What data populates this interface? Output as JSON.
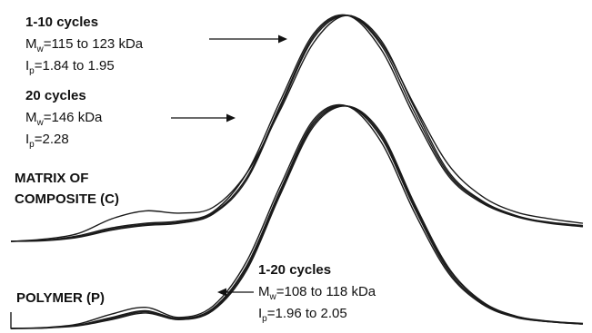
{
  "chart_data": {
    "type": "line",
    "panels": [
      {
        "label_lines": [
          "MATRIX OF",
          "COMPOSITE (C)"
        ],
        "annotations": [
          {
            "heading": "1-10 cycles",
            "mw_prefix": "M",
            "mw_sub": "w",
            "mw_text": "=115 to 123 kDa",
            "ip_prefix": "I",
            "ip_sub": "p",
            "ip_text": "=1.84 to 1.95"
          },
          {
            "heading": "20 cycles",
            "mw_prefix": "M",
            "mw_sub": "w",
            "mw_text": "=146 kDa",
            "ip_prefix": "I",
            "ip_sub": "p",
            "ip_text": "=2.28"
          }
        ],
        "series": [
          {
            "values": [
              0,
              1.0,
              3.5,
              10.0,
              13.5,
              12.5,
              15.0,
              30.0,
              58.0,
              88.0,
              100.0,
              88.0,
              60.0,
              34.0,
              20.0,
              13.0,
              10.0,
              8.0
            ]
          },
          {
            "values": [
              0,
              0.5,
              2.5,
              6.0,
              8.0,
              9.0,
              13.0,
              30.0,
              62.0,
              92.0,
              100.0,
              85.0,
              55.0,
              29.0,
              17.0,
              11.0,
              8.5,
              7.0
            ]
          },
          {
            "values": [
              0,
              0.5,
              2.0,
              5.5,
              7.5,
              8.5,
              12.5,
              28.0,
              60.0,
              91.0,
              100.0,
              87.0,
              57.0,
              30.0,
              17.5,
              11.0,
              8.0,
              6.5
            ]
          },
          {
            "values": [
              0,
              0.3,
              1.8,
              5.0,
              7.0,
              8.0,
              12.0,
              27.0,
              59.0,
              90.0,
              100.0,
              89.0,
              59.0,
              31.0,
              18.0,
              11.5,
              8.2,
              6.6
            ]
          }
        ]
      },
      {
        "label_lines": [
          "POLYMER (P)"
        ],
        "annotations": [
          {
            "heading": "1-20 cycles",
            "mw_prefix": "M",
            "mw_sub": "w",
            "mw_text": "=108 to 118 kDa",
            "ip_prefix": "I",
            "ip_sub": "p",
            "ip_text": "=1.96 to 2.05"
          }
        ],
        "series": [
          {
            "values": [
              0,
              0.4,
              2.0,
              6.5,
              9.5,
              5.0,
              10.0,
              30.0,
              64.0,
              94.0,
              100.0,
              84.0,
              52.0,
              25.0,
              11.0,
              5.0,
              3.0,
              2.0
            ]
          },
          {
            "values": [
              0,
              0.3,
              1.5,
              5.0,
              8.0,
              4.5,
              9.0,
              28.0,
              62.0,
              93.0,
              100.0,
              86.0,
              54.0,
              26.0,
              11.5,
              5.2,
              3.0,
              2.0
            ]
          },
          {
            "values": [
              0,
              0.3,
              1.5,
              4.5,
              7.5,
              4.0,
              8.5,
              27.0,
              61.0,
              92.0,
              100.0,
              87.0,
              55.0,
              27.0,
              12.0,
              5.5,
              3.2,
              2.2
            ]
          },
          {
            "values": [
              0,
              0.2,
              1.2,
              4.0,
              7.0,
              4.0,
              8.0,
              26.0,
              60.0,
              91.0,
              100.0,
              88.0,
              56.0,
              27.5,
              12.2,
              5.6,
              3.3,
              2.3
            ]
          }
        ]
      }
    ],
    "grid": false,
    "colors": {
      "line": "#1a1a1a",
      "text": "#111111"
    }
  }
}
